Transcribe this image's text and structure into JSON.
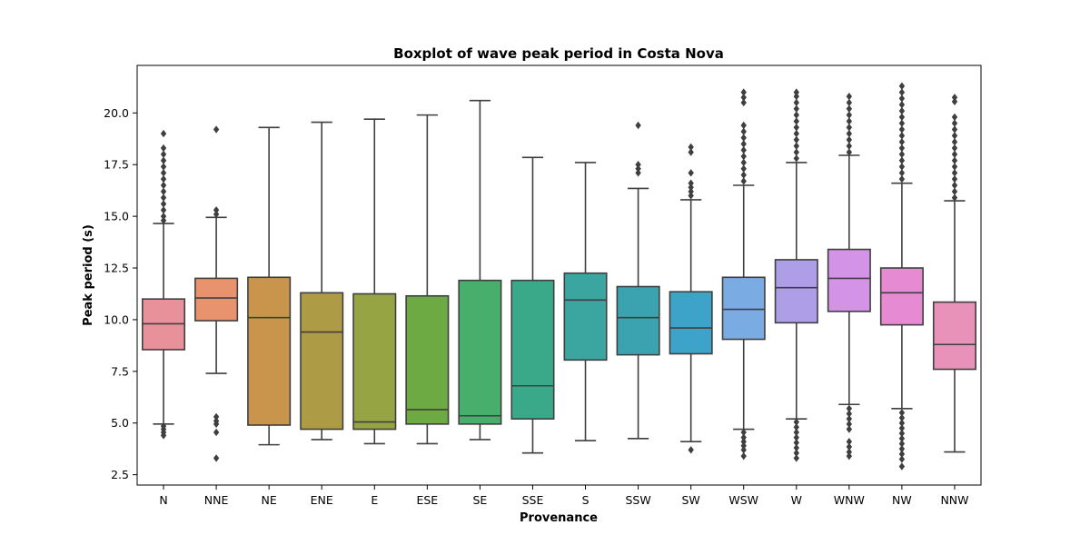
{
  "chart_data": {
    "type": "boxplot",
    "title": "Boxplot of wave peak period in Costa Nova",
    "xlabel": "Provenance",
    "ylabel": "Peak period (s)",
    "ylim": [
      2.0,
      22.3
    ],
    "yticks": [
      2.5,
      5.0,
      7.5,
      10.0,
      12.5,
      15.0,
      17.5,
      20.0
    ],
    "ytick_labels": [
      "2.5",
      "5.0",
      "7.5",
      "10.0",
      "12.5",
      "15.0",
      "17.5",
      "20.0"
    ],
    "grid": false,
    "categories": [
      "N",
      "NNE",
      "NE",
      "ENE",
      "E",
      "ESE",
      "SE",
      "SSE",
      "S",
      "SSW",
      "SW",
      "WSW",
      "W",
      "WNW",
      "NW",
      "NNW"
    ],
    "boxes": [
      {
        "label": "N",
        "color": "#e8919a",
        "whisker_low": 4.95,
        "q1": 8.55,
        "median": 9.8,
        "q3": 11.0,
        "whisker_high": 14.65,
        "outliers_low": [
          4.85,
          4.7,
          4.55,
          4.4
        ],
        "outliers_high": [
          14.8,
          15.0,
          15.3,
          15.6,
          15.9,
          16.2,
          16.5,
          16.8,
          17.1,
          17.4,
          17.7,
          18.0,
          18.3,
          19.0
        ]
      },
      {
        "label": "NNE",
        "color": "#e8936e",
        "whisker_low": 7.4,
        "q1": 9.95,
        "median": 11.05,
        "q3": 12.0,
        "whisker_high": 14.95,
        "outliers_low": [
          5.3,
          5.1,
          4.95,
          4.55,
          3.3
        ],
        "outliers_high": [
          15.1,
          15.3,
          19.2
        ]
      },
      {
        "label": "NE",
        "color": "#c9944b",
        "whisker_low": 3.95,
        "q1": 4.9,
        "median": 10.1,
        "q3": 12.05,
        "whisker_high": 19.3,
        "outliers_low": [],
        "outliers_high": []
      },
      {
        "label": "ENE",
        "color": "#ad9b45",
        "whisker_low": 4.2,
        "q1": 4.7,
        "median": 9.4,
        "q3": 11.3,
        "whisker_high": 19.55,
        "outliers_low": [],
        "outliers_high": []
      },
      {
        "label": "E",
        "color": "#97a443",
        "whisker_low": 4.0,
        "q1": 4.7,
        "median": 5.05,
        "q3": 11.25,
        "whisker_high": 19.7,
        "outliers_low": [],
        "outliers_high": []
      },
      {
        "label": "ESE",
        "color": "#6daa44",
        "whisker_low": 4.0,
        "q1": 4.95,
        "median": 5.65,
        "q3": 11.15,
        "whisker_high": 19.9,
        "outliers_low": [],
        "outliers_high": []
      },
      {
        "label": "SE",
        "color": "#47ae6b",
        "whisker_low": 4.2,
        "q1": 4.95,
        "median": 5.35,
        "q3": 11.9,
        "whisker_high": 20.6,
        "outliers_low": [],
        "outliers_high": []
      },
      {
        "label": "SSE",
        "color": "#3aa98a",
        "whisker_low": 3.55,
        "q1": 5.2,
        "median": 6.8,
        "q3": 11.9,
        "whisker_high": 17.85,
        "outliers_low": [],
        "outliers_high": []
      },
      {
        "label": "S",
        "color": "#3aa69f",
        "whisker_low": 4.15,
        "q1": 8.05,
        "median": 10.95,
        "q3": 12.25,
        "whisker_high": 17.6,
        "outliers_low": [],
        "outliers_high": []
      },
      {
        "label": "SSW",
        "color": "#3ba3b0",
        "whisker_low": 4.25,
        "q1": 8.3,
        "median": 10.1,
        "q3": 11.6,
        "whisker_high": 16.35,
        "outliers_low": [],
        "outliers_high": [
          17.1,
          17.3,
          17.5,
          19.4
        ]
      },
      {
        "label": "SW",
        "color": "#3ea3c8",
        "whisker_low": 4.1,
        "q1": 8.35,
        "median": 9.6,
        "q3": 11.35,
        "whisker_high": 15.8,
        "outliers_low": [
          3.7
        ],
        "outliers_high": [
          16.0,
          16.2,
          16.4,
          16.6,
          17.1,
          18.1,
          18.35
        ]
      },
      {
        "label": "WSW",
        "color": "#7aabe3",
        "whisker_low": 4.7,
        "q1": 9.05,
        "median": 10.5,
        "q3": 12.05,
        "whisker_high": 16.5,
        "outliers_low": [
          4.55,
          4.3,
          4.1,
          3.9,
          3.7,
          3.4
        ],
        "outliers_high": [
          16.7,
          17.0,
          17.3,
          17.6,
          17.9,
          18.2,
          18.5,
          18.8,
          19.1,
          19.4,
          20.5,
          20.75,
          21.0
        ]
      },
      {
        "label": "W",
        "color": "#ae9ee8",
        "whisker_low": 5.2,
        "q1": 9.85,
        "median": 11.55,
        "q3": 12.9,
        "whisker_high": 17.6,
        "outliers_low": [
          5.05,
          4.8,
          4.55,
          4.3,
          4.05,
          3.8,
          3.55,
          3.3
        ],
        "outliers_high": [
          17.8,
          18.1,
          18.4,
          18.7,
          19.0,
          19.3,
          19.6,
          19.9,
          20.2,
          20.5,
          20.8,
          21.0
        ]
      },
      {
        "label": "WNW",
        "color": "#d393e7",
        "whisker_low": 5.9,
        "q1": 10.4,
        "median": 12.0,
        "q3": 13.4,
        "whisker_high": 17.95,
        "outliers_low": [
          5.7,
          5.45,
          5.2,
          4.95,
          4.7,
          4.1,
          3.85,
          3.6,
          3.4
        ],
        "outliers_high": [
          18.1,
          18.4,
          18.7,
          19.0,
          19.3,
          19.6,
          19.9,
          20.2,
          20.5,
          20.8
        ]
      },
      {
        "label": "NW",
        "color": "#e68bd3",
        "whisker_low": 5.7,
        "q1": 9.75,
        "median": 11.3,
        "q3": 12.5,
        "whisker_high": 16.6,
        "outliers_low": [
          5.5,
          5.25,
          5.0,
          4.75,
          4.5,
          4.25,
          4.0,
          3.75,
          3.5,
          3.25,
          2.9
        ],
        "outliers_high": [
          16.8,
          17.1,
          17.4,
          17.7,
          18.0,
          18.3,
          18.6,
          18.9,
          19.2,
          19.5,
          19.8,
          20.1,
          20.4,
          20.7,
          21.0,
          21.3
        ]
      },
      {
        "label": "NNW",
        "color": "#e891b9",
        "whisker_low": 3.6,
        "q1": 7.6,
        "median": 8.8,
        "q3": 10.85,
        "whisker_high": 15.75,
        "outliers_low": [],
        "outliers_high": [
          15.9,
          16.2,
          16.5,
          16.8,
          17.1,
          17.4,
          17.7,
          18.0,
          18.3,
          18.6,
          18.9,
          19.2,
          19.5,
          19.8,
          20.55,
          20.75
        ]
      }
    ]
  }
}
